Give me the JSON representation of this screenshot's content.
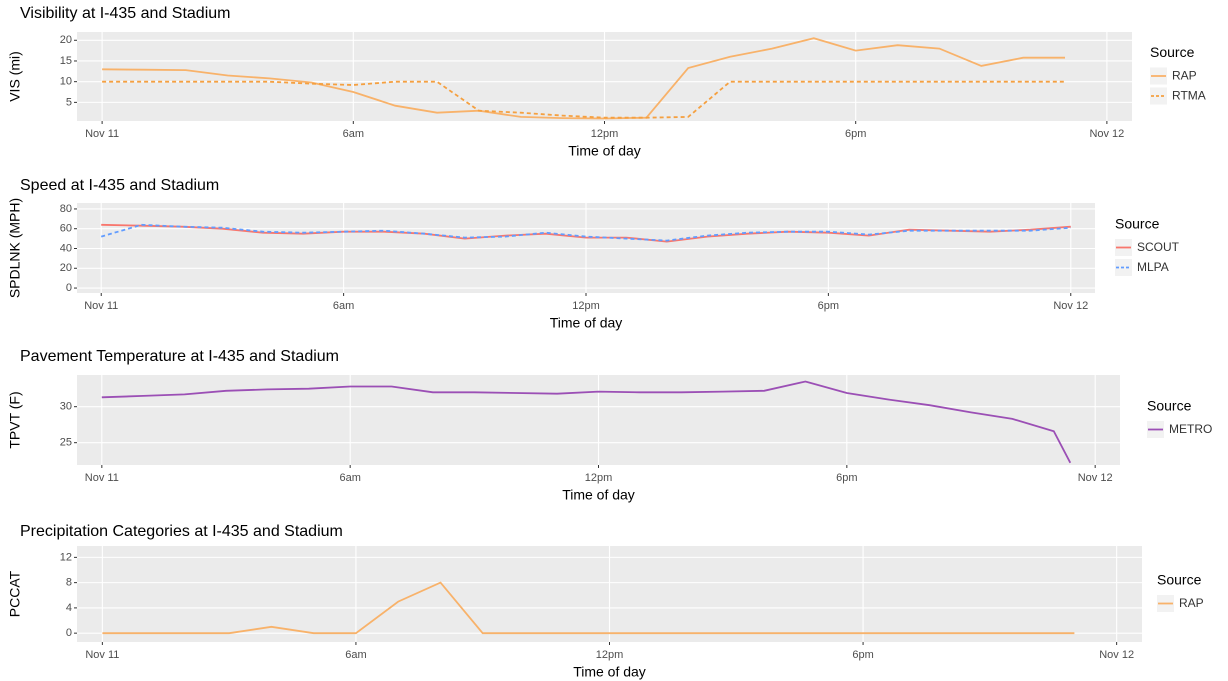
{
  "chart_data": [
    {
      "type": "line",
      "title": "Visibility at I-435 and Stadium",
      "x_label": "Time of day",
      "y_label": "VIS (mi)",
      "x": [
        0,
        1,
        2,
        3,
        4,
        5,
        6,
        7,
        8,
        9,
        10,
        11,
        12,
        13,
        14,
        15,
        16,
        17,
        18,
        19,
        20,
        21,
        22,
        23
      ],
      "series": [
        {
          "name": "RAP",
          "color": "#f8b26a",
          "linestyle": "solid",
          "values": [
            13,
            12.9,
            12.8,
            11.5,
            10.8,
            9.8,
            7.5,
            4.2,
            2.5,
            3,
            1.5,
            1.2,
            1.1,
            1.3,
            13.3,
            16,
            18,
            20.5,
            17.5,
            18.8,
            18,
            13.8,
            15.8,
            15.8
          ]
        },
        {
          "name": "RTMA",
          "color": "#f5a040",
          "linestyle": "dashed",
          "values": [
            10,
            10,
            10,
            10,
            10,
            9.5,
            9.2,
            10,
            10,
            3,
            2.5,
            1.8,
            1.3,
            1.3,
            1.5,
            10,
            10,
            10,
            10,
            10,
            10,
            10,
            10,
            10
          ]
        }
      ],
      "xlim": [
        -0.6,
        24.6
      ],
      "xticks": [
        {
          "value": 0,
          "label": "Nov 11"
        },
        {
          "value": 6,
          "label": "6am"
        },
        {
          "value": 12,
          "label": "12pm"
        },
        {
          "value": 18,
          "label": "6pm"
        },
        {
          "value": 24,
          "label": "Nov 12"
        }
      ],
      "ylim": [
        0.5,
        22
      ],
      "yticks": [
        5,
        10,
        15,
        20
      ],
      "grid": true,
      "legend_title": "Source",
      "legend": "right"
    },
    {
      "type": "line",
      "title": "Speed at I-435 and Stadium",
      "x_label": "Time of day",
      "y_label": "SPDLNK (MPH)",
      "x": [
        0,
        1,
        2,
        3,
        4,
        5,
        6,
        7,
        8,
        9,
        10,
        11,
        12,
        13,
        14,
        15,
        16,
        17,
        18,
        19,
        20,
        21,
        22,
        23,
        24
      ],
      "series": [
        {
          "name": "SCOUT",
          "color": "#f8766d",
          "linestyle": "solid",
          "values": [
            64,
            63,
            62,
            60,
            56,
            55,
            57,
            57,
            55,
            50,
            53,
            55,
            51,
            51,
            47,
            52,
            55,
            57,
            56,
            53,
            59,
            58,
            57,
            59,
            62
          ]
        },
        {
          "name": "MLPA",
          "color": "#619cff",
          "linestyle": "dashed",
          "values": [
            52,
            64,
            62,
            61,
            57,
            56,
            57,
            58,
            55,
            51,
            52,
            56,
            52,
            50,
            48,
            53,
            56,
            57,
            57,
            54,
            58,
            58,
            58,
            58,
            61
          ]
        }
      ],
      "xlim": [
        -0.6,
        24.6
      ],
      "xticks": [
        {
          "value": 0,
          "label": "Nov 11"
        },
        {
          "value": 6,
          "label": "6am"
        },
        {
          "value": 12,
          "label": "12pm"
        },
        {
          "value": 18,
          "label": "6pm"
        },
        {
          "value": 24,
          "label": "Nov 12"
        }
      ],
      "ylim": [
        -5,
        86
      ],
      "yticks": [
        0,
        20,
        40,
        60,
        80
      ],
      "grid": true,
      "legend_title": "Source",
      "legend": "right"
    },
    {
      "type": "line",
      "title": "Pavement Temperature at I-435 and Stadium",
      "x_label": "Time of day",
      "y_label": "TPVT (F)",
      "x": [
        0,
        1,
        2,
        3,
        4,
        5,
        6,
        7,
        8,
        9,
        10,
        11,
        12,
        13,
        14,
        15,
        16,
        17,
        18,
        19,
        20,
        21,
        22,
        23,
        23.4
      ],
      "series": [
        {
          "name": "METRO",
          "color": "#9b4fb5",
          "linestyle": "solid",
          "values": [
            31.3,
            31.5,
            31.7,
            32.2,
            32.4,
            32.5,
            32.8,
            32.8,
            32.0,
            32.0,
            31.9,
            31.8,
            32.1,
            32.0,
            32.0,
            32.1,
            32.2,
            33.5,
            31.9,
            31.0,
            30.2,
            29.2,
            28.3,
            26.6,
            22.2
          ]
        }
      ],
      "xlim": [
        -0.6,
        24.6
      ],
      "xticks": [
        {
          "value": 0,
          "label": "Nov 11"
        },
        {
          "value": 6,
          "label": "6am"
        },
        {
          "value": 12,
          "label": "12pm"
        },
        {
          "value": 18,
          "label": "6pm"
        },
        {
          "value": 24,
          "label": "Nov 12"
        }
      ],
      "ylim": [
        21.9,
        34.4
      ],
      "yticks": [
        25,
        30
      ],
      "grid": true,
      "legend_title": "Source",
      "legend": "right"
    },
    {
      "type": "line",
      "title": "Precipitation Categories at I-435 and Stadium",
      "x_label": "Time of day",
      "y_label": "PCCAT",
      "x": [
        0,
        1,
        2,
        3,
        4,
        5,
        6,
        7,
        8,
        9,
        10,
        11,
        12,
        13,
        14,
        15,
        16,
        17,
        18,
        19,
        20,
        21,
        22,
        23
      ],
      "series": [
        {
          "name": "RAP",
          "color": "#f8b26a",
          "linestyle": "solid",
          "values": [
            0,
            0,
            0,
            0,
            1,
            0,
            0,
            5,
            8,
            0,
            0,
            0,
            0,
            0,
            0,
            0,
            0,
            0,
            0,
            0,
            0,
            0,
            0,
            0
          ]
        }
      ],
      "xlim": [
        -0.6,
        24.6
      ],
      "xticks": [
        {
          "value": 0,
          "label": "Nov 11"
        },
        {
          "value": 6,
          "label": "6am"
        },
        {
          "value": 12,
          "label": "12pm"
        },
        {
          "value": 18,
          "label": "6pm"
        },
        {
          "value": 24,
          "label": "Nov 12"
        }
      ],
      "ylim": [
        -1.4,
        13.8
      ],
      "yticks": [
        0,
        4,
        8,
        12
      ],
      "grid": true,
      "legend_title": "Source",
      "legend": "right"
    }
  ]
}
